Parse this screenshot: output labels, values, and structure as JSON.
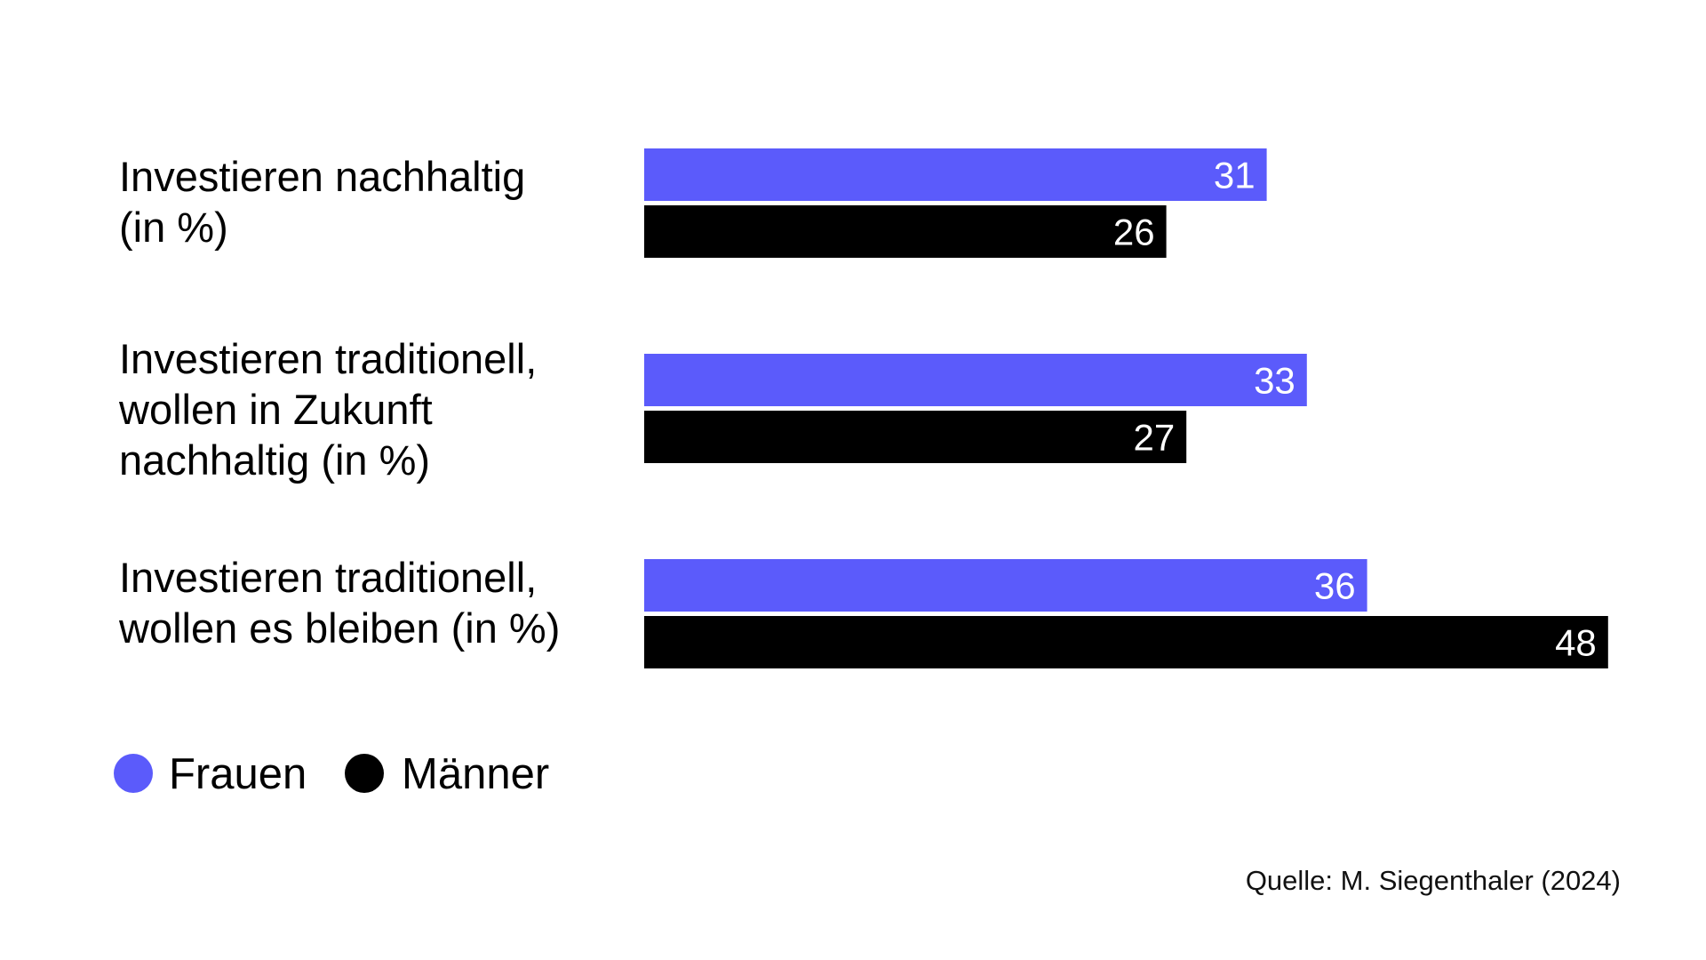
{
  "chart_data": {
    "type": "bar",
    "orientation": "horizontal",
    "categories": [
      [
        "Investieren nachhaltig",
        "(in %)"
      ],
      [
        "Investieren traditionell,",
        "wollen in Zukunft",
        "nachhaltig (in %)"
      ],
      [
        "Investieren traditionell,",
        "wollen es bleiben (in %)"
      ]
    ],
    "series": [
      {
        "name": "Frauen",
        "color": "#5b5bfb",
        "values": [
          31,
          33,
          36
        ]
      },
      {
        "name": "Männer",
        "color": "#000000",
        "values": [
          26,
          27,
          48
        ]
      }
    ],
    "xlim": [
      0,
      48
    ],
    "data_labels": true,
    "grid": false,
    "legend_position": "bottom-left",
    "source": "Quelle: M. Siegenthaler (2024)"
  }
}
